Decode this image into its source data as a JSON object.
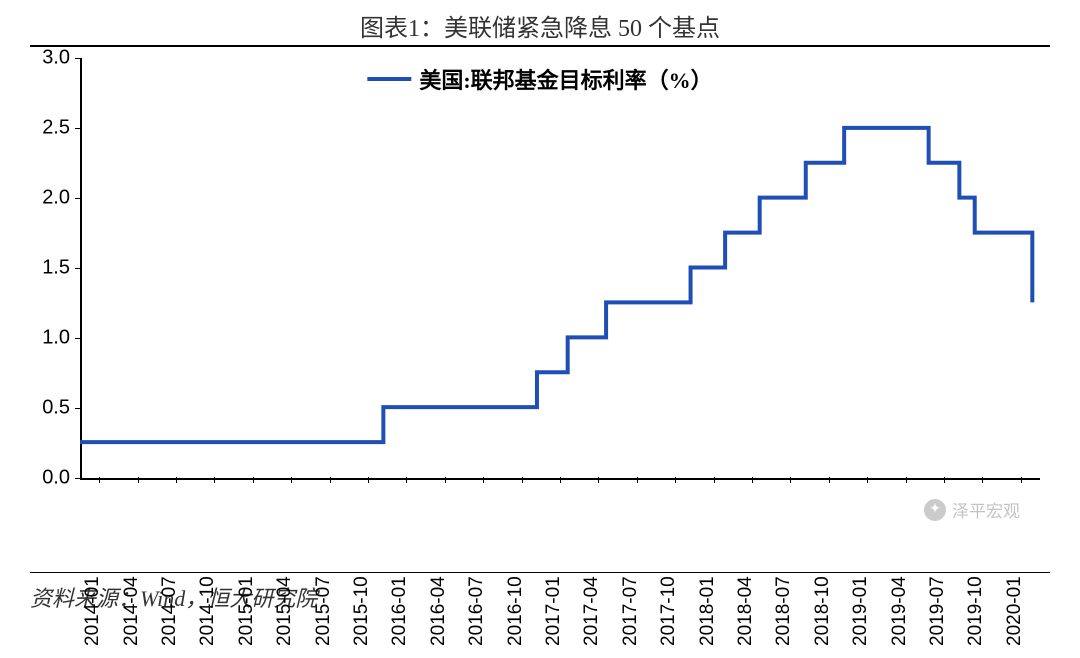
{
  "title": "图表1：美联储紧急降息 50 个基点",
  "source": "资料来源：Wind，恒大研究院",
  "legend_label": "美国:联邦基金目标利率（%）",
  "watermark_text": "泽平宏观",
  "chart": {
    "type": "step-line",
    "line_color": "#1f4fb4",
    "line_width": 4,
    "background_color": "#ffffff",
    "ylim": [
      0.0,
      3.0
    ],
    "ytick_step": 0.5,
    "y_ticks": [
      "0.0",
      "0.5",
      "1.0",
      "1.5",
      "2.0",
      "2.5",
      "3.0"
    ],
    "x_categories": [
      "2014-01",
      "2014-04",
      "2014-07",
      "2014-10",
      "2015-01",
      "2015-04",
      "2015-07",
      "2015-10",
      "2016-01",
      "2016-04",
      "2016-07",
      "2016-10",
      "2017-01",
      "2017-04",
      "2017-07",
      "2017-10",
      "2018-01",
      "2018-04",
      "2018-07",
      "2018-10",
      "2019-01",
      "2019-04",
      "2019-07",
      "2019-10",
      "2020-01"
    ],
    "series": {
      "points": [
        {
          "x": 0.0,
          "y": 0.25
        },
        {
          "x": 7.9,
          "y": 0.25
        },
        {
          "x": 7.9,
          "y": 0.5
        },
        {
          "x": 11.9,
          "y": 0.5
        },
        {
          "x": 11.9,
          "y": 0.75
        },
        {
          "x": 12.7,
          "y": 0.75
        },
        {
          "x": 12.7,
          "y": 1.0
        },
        {
          "x": 13.7,
          "y": 1.0
        },
        {
          "x": 13.7,
          "y": 1.25
        },
        {
          "x": 15.9,
          "y": 1.25
        },
        {
          "x": 15.9,
          "y": 1.5
        },
        {
          "x": 16.8,
          "y": 1.5
        },
        {
          "x": 16.8,
          "y": 1.75
        },
        {
          "x": 17.7,
          "y": 1.75
        },
        {
          "x": 17.7,
          "y": 2.0
        },
        {
          "x": 18.9,
          "y": 2.0
        },
        {
          "x": 18.9,
          "y": 2.25
        },
        {
          "x": 19.9,
          "y": 2.25
        },
        {
          "x": 19.9,
          "y": 2.5
        },
        {
          "x": 22.1,
          "y": 2.5
        },
        {
          "x": 22.1,
          "y": 2.25
        },
        {
          "x": 22.9,
          "y": 2.25
        },
        {
          "x": 22.9,
          "y": 2.0
        },
        {
          "x": 23.3,
          "y": 2.0
        },
        {
          "x": 23.3,
          "y": 1.75
        },
        {
          "x": 24.8,
          "y": 1.75
        },
        {
          "x": 24.8,
          "y": 1.25
        }
      ],
      "x_domain_max": 25
    }
  }
}
